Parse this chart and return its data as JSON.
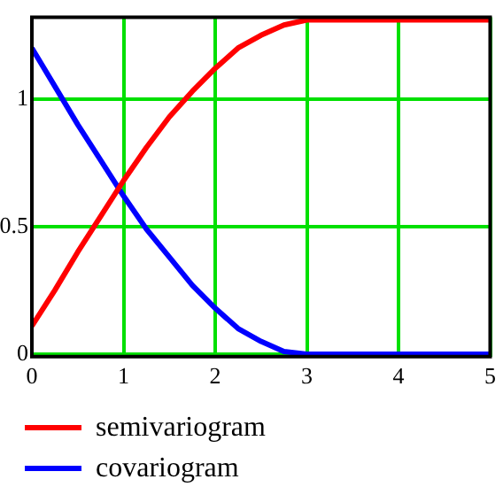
{
  "chart_data": {
    "type": "line",
    "x": [
      0,
      0.25,
      0.5,
      0.75,
      1,
      1.25,
      1.5,
      1.75,
      2,
      2.25,
      2.5,
      2.75,
      3,
      5
    ],
    "series": [
      {
        "name": "semivariogram",
        "color": "#ff0000",
        "values": [
          0.11,
          0.25,
          0.4,
          0.54,
          0.68,
          0.81,
          0.93,
          1.03,
          1.12,
          1.2,
          1.25,
          1.29,
          1.31,
          1.31
        ]
      },
      {
        "name": "covariogram",
        "color": "#0000ff",
        "values": [
          1.2,
          1.05,
          0.9,
          0.76,
          0.62,
          0.49,
          0.38,
          0.27,
          0.18,
          0.1,
          0.05,
          0.01,
          0,
          0
        ]
      }
    ],
    "xlim": [
      0,
      5
    ],
    "ylim": [
      -0.01,
      1.32
    ],
    "xticks": [
      0,
      1,
      2,
      3,
      4,
      5
    ],
    "yticks": [
      0,
      0.5,
      1
    ],
    "grid": true,
    "legend": "bottom left"
  }
}
